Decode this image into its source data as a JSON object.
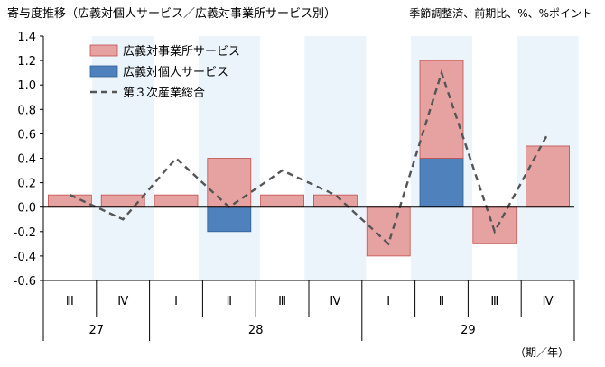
{
  "chart_data": {
    "type": "bar",
    "title": "寄与度推移（広義対個人サービス／広義対事業所サービス別）",
    "note": "季節調整済、前期比、%、%ポイント",
    "x": {
      "quarters": [
        "Ⅲ",
        "Ⅳ",
        "Ⅰ",
        "Ⅱ",
        "Ⅲ",
        "Ⅳ",
        "Ⅰ",
        "Ⅱ",
        "Ⅲ",
        "Ⅳ"
      ],
      "years": [
        {
          "label": "27",
          "span": 2
        },
        {
          "label": "28",
          "span": 4
        },
        {
          "label": "29",
          "span": 4
        }
      ],
      "unit_label": "（期／年）"
    },
    "ylim": [
      -0.6,
      1.4
    ],
    "yticks": [
      "1.4",
      "1.2",
      "1.0",
      "0.8",
      "0.6",
      "0.4",
      "0.2",
      "0.0",
      "-0.2",
      "-0.4",
      "-0.6"
    ],
    "shaded_columns": [
      1,
      3,
      5,
      7,
      9
    ],
    "series": [
      {
        "name": "広義対事業所サービス",
        "kind": "bar",
        "color": "#e6a1a1",
        "values": [
          0.1,
          0.1,
          0.1,
          0.4,
          0.1,
          0.1,
          -0.4,
          0.8,
          -0.3,
          0.5
        ]
      },
      {
        "name": "広義対個人サービス",
        "kind": "bar",
        "color": "#4f81bd",
        "values": [
          0.0,
          0.0,
          0.0,
          -0.2,
          0.0,
          0.0,
          0.0,
          0.4,
          0.0,
          0.0
        ]
      },
      {
        "name": "第３次産業総合",
        "kind": "line",
        "color": "#555555",
        "values": [
          0.1,
          -0.1,
          0.4,
          0.0,
          0.3,
          0.1,
          -0.3,
          1.1,
          -0.2,
          0.6
        ]
      }
    ],
    "legend_position": "top-left"
  },
  "colors": {
    "shade": "#eaf4fa",
    "bar_border": "#c0504d",
    "axis": "#000000"
  }
}
